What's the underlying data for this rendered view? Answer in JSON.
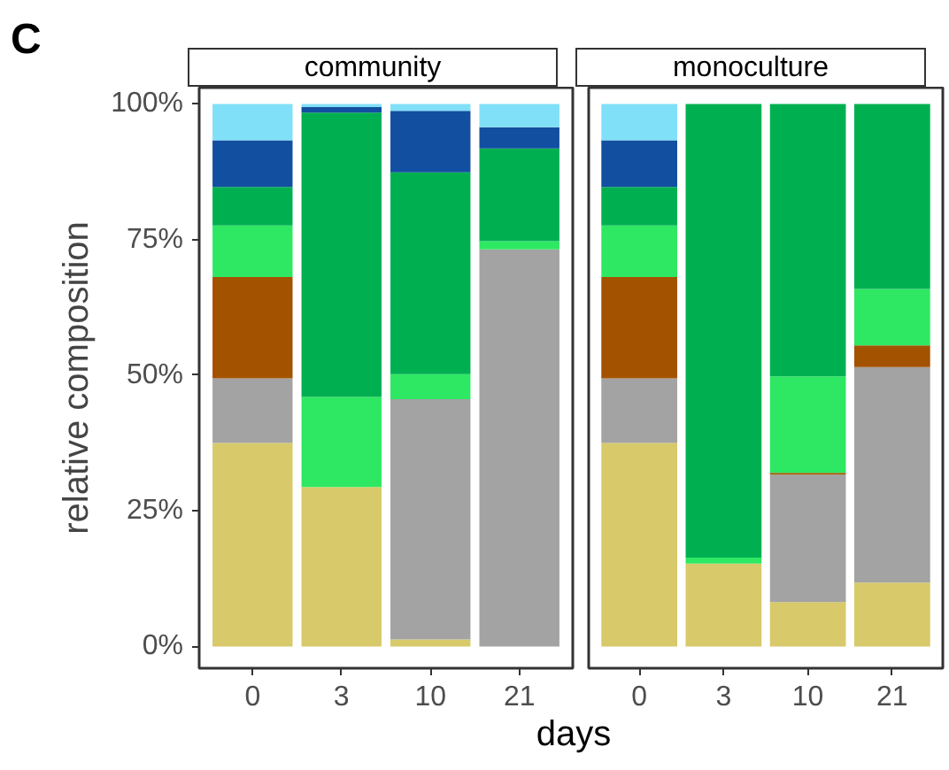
{
  "chart_data": [
    {
      "type": "bar",
      "title": "community",
      "categories": [
        "0",
        "3",
        "10",
        "21"
      ],
      "stacked": true,
      "xlabel": "days",
      "ylabel": "relative composition",
      "annotations": [
        "C"
      ],
      "ylim": [
        -4,
        103
      ],
      "yticks": [
        {
          "value": 0,
          "label": "0%"
        },
        {
          "value": 25,
          "label": "25%"
        },
        {
          "value": 50,
          "label": "50%"
        },
        {
          "value": 75,
          "label": "75%"
        },
        {
          "value": 100,
          "label": "100%"
        }
      ],
      "series": [
        {
          "color": "#d8c96a",
          "values": [
            37.5,
            29.4,
            1.3,
            0
          ]
        },
        {
          "color": "#a3a3a3",
          "values": [
            11.9,
            0,
            44.3,
            73.2
          ]
        },
        {
          "color": "#a35200",
          "values": [
            18.7,
            0,
            0,
            0
          ]
        },
        {
          "color": "#2ee863",
          "values": [
            9.5,
            16.6,
            4.6,
            1.5
          ]
        },
        {
          "color": "#00b050",
          "values": [
            7.1,
            52.4,
            37.2,
            17.1
          ]
        },
        {
          "color": "#124fa0",
          "values": [
            8.6,
            1.0,
            11.3,
            3.9
          ]
        },
        {
          "color": "#80e0f8",
          "values": [
            6.7,
            0.6,
            1.3,
            4.3
          ]
        }
      ]
    },
    {
      "type": "bar",
      "title": "monoculture",
      "categories": [
        "0",
        "3",
        "10",
        "21"
      ],
      "stacked": true,
      "tick_labels": "x",
      "ylim": [
        -4,
        103
      ],
      "series": [
        {
          "color": "#d8c96a",
          "values": [
            37.5,
            15.3,
            8.2,
            11.8
          ]
        },
        {
          "color": "#a3a3a3",
          "values": [
            11.9,
            0,
            23.5,
            39.7
          ]
        },
        {
          "color": "#a35200",
          "values": [
            18.7,
            0,
            0.3,
            4.0
          ]
        },
        {
          "color": "#2ee863",
          "values": [
            9.5,
            1.1,
            17.8,
            10.4
          ]
        },
        {
          "color": "#00b050",
          "values": [
            7.1,
            83.6,
            50.2,
            34.1
          ]
        },
        {
          "color": "#124fa0",
          "values": [
            8.6,
            0,
            0,
            0
          ]
        },
        {
          "color": "#80e0f8",
          "values": [
            6.7,
            0,
            0,
            0
          ]
        }
      ]
    }
  ]
}
